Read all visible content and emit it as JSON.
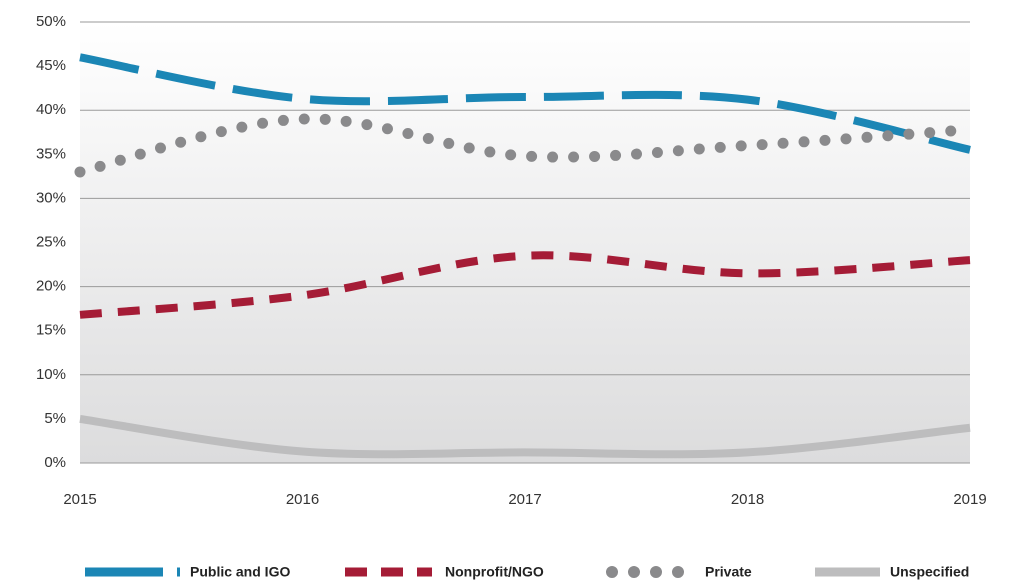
{
  "chart_data": {
    "type": "line",
    "x": [
      2015,
      2016,
      2017,
      2018,
      2019
    ],
    "xlim": [
      2015,
      2019
    ],
    "xticks": [
      2015,
      2016,
      2017,
      2018,
      2019
    ],
    "ylim": [
      0,
      50
    ],
    "yticks": [
      {
        "value": 0,
        "label": "0%"
      },
      {
        "value": 5,
        "label": "5%"
      },
      {
        "value": 10,
        "label": "10%"
      },
      {
        "value": 15,
        "label": "15%"
      },
      {
        "value": 20,
        "label": "20%"
      },
      {
        "value": 25,
        "label": "25%"
      },
      {
        "value": 30,
        "label": "30%"
      },
      {
        "value": 35,
        "label": "35%"
      },
      {
        "value": 40,
        "label": "40%"
      },
      {
        "value": 45,
        "label": "45%"
      },
      {
        "value": 50,
        "label": "50%"
      }
    ],
    "grid": true,
    "legend": "bottom",
    "series": [
      {
        "name": "Public and IGO",
        "color": "#1b86b5",
        "values": [
          46,
          41.3,
          41.5,
          41.2,
          35.5
        ]
      },
      {
        "name": "Nonprofit/NGO",
        "color": "#a51c36",
        "values": [
          16.8,
          19,
          23.5,
          21.5,
          23
        ]
      },
      {
        "name": "Private",
        "color": "#8a8a8c",
        "values": [
          33,
          39,
          34.8,
          36,
          37.8
        ]
      },
      {
        "name": "Unspecified",
        "color": "#bdbdbe",
        "values": [
          5,
          1.3,
          1.2,
          1.2,
          4
        ]
      }
    ]
  }
}
